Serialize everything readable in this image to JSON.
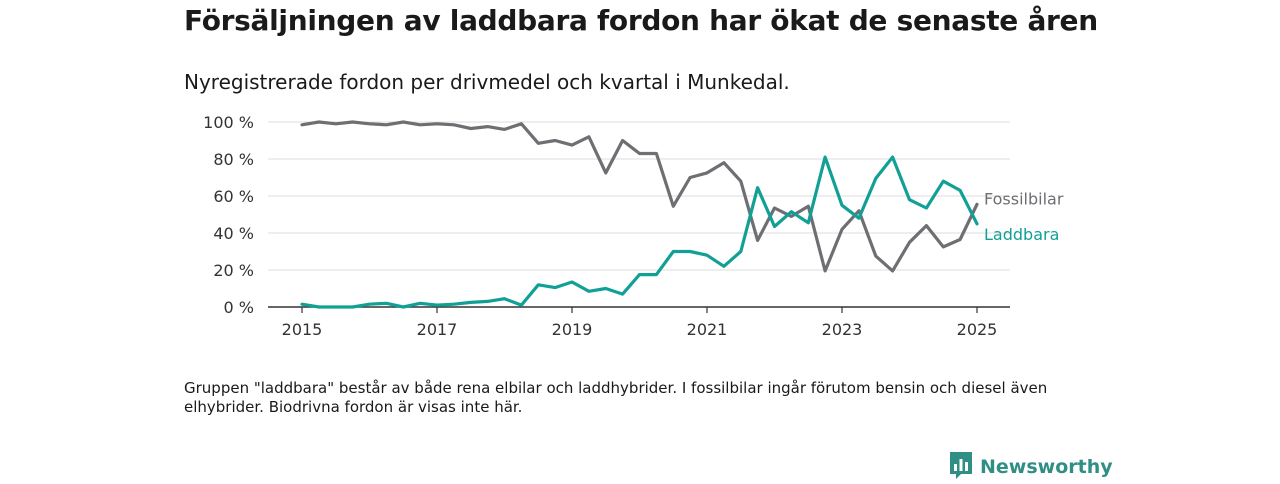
{
  "title": "Försäljningen av laddbara fordon har ökat de senaste åren",
  "subtitle": "Nyregistrerade fordon per drivmedel och kvartal i Munkedal.",
  "note": "Gruppen \"laddbara\" består av både rena elbilar och laddhybrider. I fossilbilar ingår förutom bensin och diesel även elhybrider. Biodrivna fordon är visas inte här.",
  "brand": {
    "name": "Newsworthy",
    "icon": "newsworthy-logo-icon"
  },
  "colors": {
    "Fossilbilar": "#6e6e73",
    "Laddbara": "#11a096",
    "grid": "#dddddd",
    "axis": "#333333"
  },
  "chart_data": {
    "type": "line",
    "x_start": "2015-Q1",
    "x_tick_labels": [
      "2015",
      "2017",
      "2019",
      "2021",
      "2023",
      "2025"
    ],
    "y_tick_labels": [
      "100 %",
      "80 %",
      "60 %",
      "40 %",
      "20 %",
      "0 %"
    ],
    "ylim": [
      0,
      100
    ],
    "grid": true,
    "series": [
      {
        "name": "Fossilbilar",
        "values": [
          98.5,
          100,
          99,
          100,
          99,
          98.5,
          100,
          98.5,
          99,
          98.5,
          96.5,
          97.5,
          96,
          99,
          88.5,
          90,
          87.5,
          92,
          72.5,
          90,
          83,
          83,
          54.5,
          70,
          72.5,
          78,
          68,
          36,
          53.5,
          49,
          54.5,
          19.5,
          42,
          52,
          27.5,
          19.5,
          35,
          44,
          32.5,
          36.5,
          55.5
        ]
      },
      {
        "name": "Laddbara",
        "values": [
          1.5,
          0,
          0,
          0,
          1.5,
          2,
          0,
          2,
          1,
          1.5,
          2.5,
          3,
          4.5,
          1,
          12,
          10.5,
          13.5,
          8.5,
          10,
          7,
          17.5,
          17.5,
          30,
          30,
          28,
          22,
          30,
          64.5,
          43.5,
          51.5,
          45.5,
          81,
          55,
          48,
          69.5,
          81,
          58,
          53.5,
          68,
          63,
          45
        ]
      }
    ]
  }
}
